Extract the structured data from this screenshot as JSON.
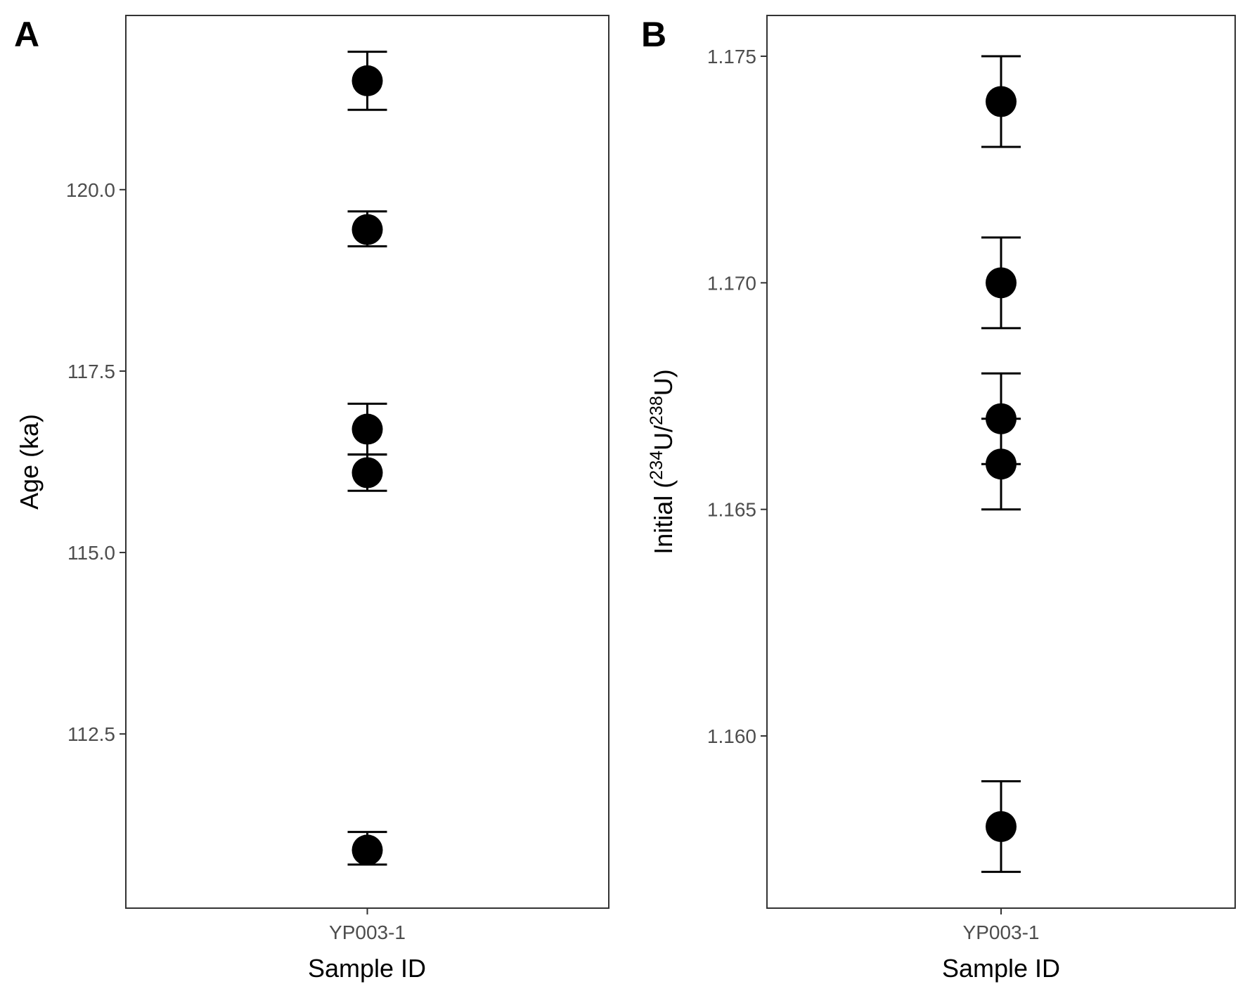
{
  "chart_data": [
    {
      "type": "scatter",
      "panel_label": "A",
      "xlabel": "Sample ID",
      "ylabel": "Age (ka)",
      "categories": [
        "YP003-1"
      ],
      "yticks": [
        {
          "value": 112.5,
          "label": "112.5"
        },
        {
          "value": 115.0,
          "label": "115.0"
        },
        {
          "value": 117.5,
          "label": "117.5"
        },
        {
          "value": 120.0,
          "label": "120.0"
        }
      ],
      "ylim": [
        110.1,
        122.4
      ],
      "grid": false,
      "points": [
        {
          "category": "YP003-1",
          "y": 121.5,
          "ymin": 121.1,
          "ymax": 121.9
        },
        {
          "category": "YP003-1",
          "y": 119.45,
          "ymin": 119.22,
          "ymax": 119.7
        },
        {
          "category": "YP003-1",
          "y": 116.7,
          "ymin": 116.35,
          "ymax": 117.05
        },
        {
          "category": "YP003-1",
          "y": 116.1,
          "ymin": 115.85,
          "ymax": 116.35
        },
        {
          "category": "YP003-1",
          "y": 110.9,
          "ymin": 110.7,
          "ymax": 111.15
        }
      ]
    },
    {
      "type": "scatter",
      "panel_label": "B",
      "xlabel": "Sample ID",
      "ylabel": "Initial (234U/238U)",
      "ylabel_parts": {
        "prefix": "Initial (",
        "sup1": "234",
        "mid": "U/",
        "sup2": "238",
        "suffix": "U)"
      },
      "categories": [
        "YP003-1"
      ],
      "yticks": [
        {
          "value": 1.16,
          "label": "1.160"
        },
        {
          "value": 1.165,
          "label": "1.165"
        },
        {
          "value": 1.17,
          "label": "1.170"
        },
        {
          "value": 1.175,
          "label": "1.175"
        }
      ],
      "ylim": [
        1.1562,
        1.1759
      ],
      "grid": false,
      "points": [
        {
          "category": "YP003-1",
          "y": 1.174,
          "ymin": 1.173,
          "ymax": 1.175
        },
        {
          "category": "YP003-1",
          "y": 1.17,
          "ymin": 1.169,
          "ymax": 1.171
        },
        {
          "category": "YP003-1",
          "y": 1.167,
          "ymin": 1.166,
          "ymax": 1.168
        },
        {
          "category": "YP003-1",
          "y": 1.166,
          "ymin": 1.165,
          "ymax": 1.167
        },
        {
          "category": "YP003-1",
          "y": 1.158,
          "ymin": 1.157,
          "ymax": 1.159
        }
      ]
    }
  ]
}
